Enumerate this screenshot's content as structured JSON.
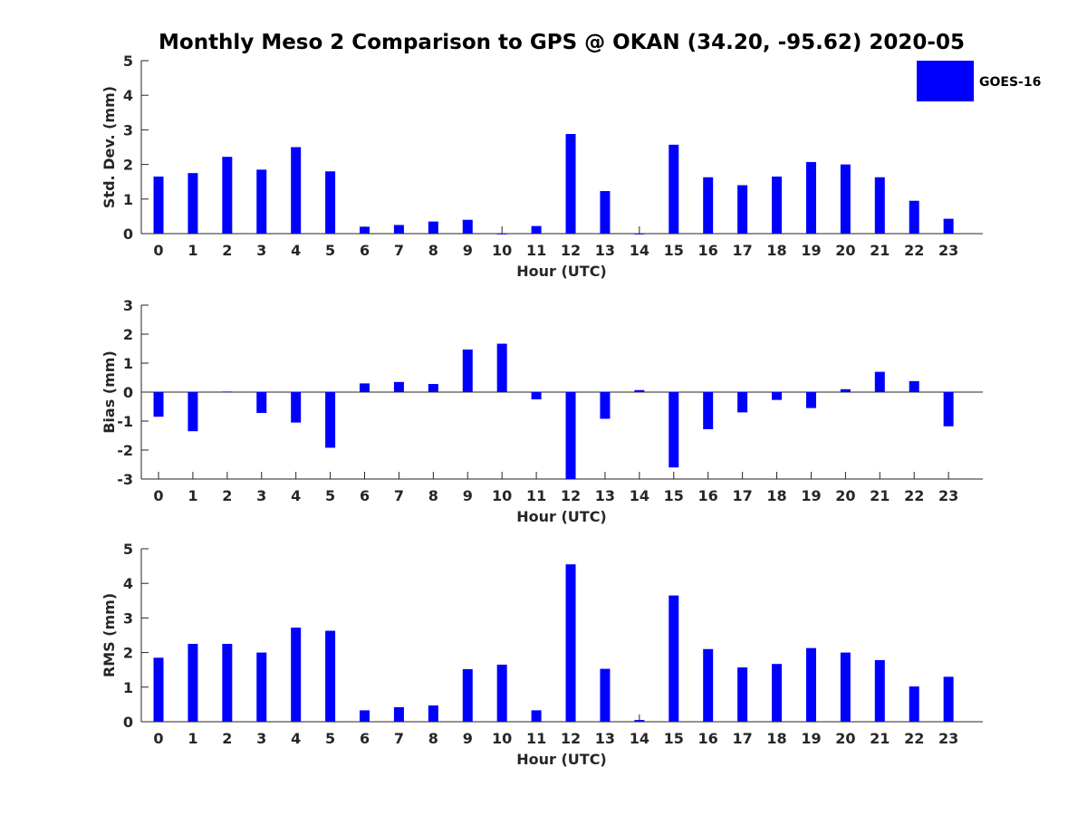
{
  "title": "Monthly Meso 2 Comparison to GPS @ OKAN (34.20, -95.62) 2020-05",
  "legend": {
    "label": "GOES-16",
    "color": "#0000ff"
  },
  "chart_data": [
    {
      "type": "bar",
      "panel": "std-dev",
      "xlabel": "Hour (UTC)",
      "ylabel": "Std. Dev. (mm)",
      "ylim": [
        0,
        5
      ],
      "yticks": [
        0,
        1,
        2,
        3,
        4,
        5
      ],
      "categories": [
        "0",
        "1",
        "2",
        "3",
        "4",
        "5",
        "6",
        "7",
        "8",
        "9",
        "10",
        "11",
        "12",
        "13",
        "14",
        "15",
        "16",
        "17",
        "18",
        "19",
        "20",
        "21",
        "22",
        "23"
      ],
      "series": [
        {
          "name": "GOES-16",
          "values": [
            1.65,
            1.75,
            2.22,
            1.85,
            2.5,
            1.8,
            0.2,
            0.25,
            0.35,
            0.4,
            0.0,
            0.22,
            2.88,
            1.23,
            0.0,
            2.57,
            1.63,
            1.4,
            1.65,
            2.07,
            2.0,
            1.63,
            0.95,
            0.43
          ]
        }
      ]
    },
    {
      "type": "bar",
      "panel": "bias",
      "xlabel": "Hour (UTC)",
      "ylabel": "Bias (mm)",
      "ylim": [
        -3,
        3
      ],
      "yticks": [
        -3,
        -2,
        -1,
        0,
        1,
        2,
        3
      ],
      "categories": [
        "0",
        "1",
        "2",
        "3",
        "4",
        "5",
        "6",
        "7",
        "8",
        "9",
        "10",
        "11",
        "12",
        "13",
        "14",
        "15",
        "16",
        "17",
        "18",
        "19",
        "20",
        "21",
        "22",
        "23"
      ],
      "series": [
        {
          "name": "GOES-16",
          "values": [
            -0.85,
            -1.35,
            0.02,
            -0.72,
            -1.05,
            -1.92,
            0.3,
            0.35,
            0.28,
            1.47,
            1.67,
            -0.25,
            -3.0,
            -0.92,
            0.07,
            -2.6,
            -1.28,
            -0.7,
            -0.27,
            -0.55,
            0.1,
            0.7,
            0.38,
            -1.18
          ]
        }
      ]
    },
    {
      "type": "bar",
      "panel": "rms",
      "xlabel": "Hour (UTC)",
      "ylabel": "RMS (mm)",
      "ylim": [
        0,
        5
      ],
      "yticks": [
        0,
        1,
        2,
        3,
        4,
        5
      ],
      "categories": [
        "0",
        "1",
        "2",
        "3",
        "4",
        "5",
        "6",
        "7",
        "8",
        "9",
        "10",
        "11",
        "12",
        "13",
        "14",
        "15",
        "16",
        "17",
        "18",
        "19",
        "20",
        "21",
        "22",
        "23"
      ],
      "series": [
        {
          "name": "GOES-16",
          "values": [
            1.85,
            2.25,
            2.25,
            2.0,
            2.72,
            2.63,
            0.33,
            0.42,
            0.47,
            1.52,
            1.65,
            0.33,
            4.55,
            1.53,
            0.05,
            3.65,
            2.1,
            1.57,
            1.67,
            2.13,
            2.0,
            1.78,
            1.02,
            1.3
          ]
        }
      ]
    }
  ]
}
